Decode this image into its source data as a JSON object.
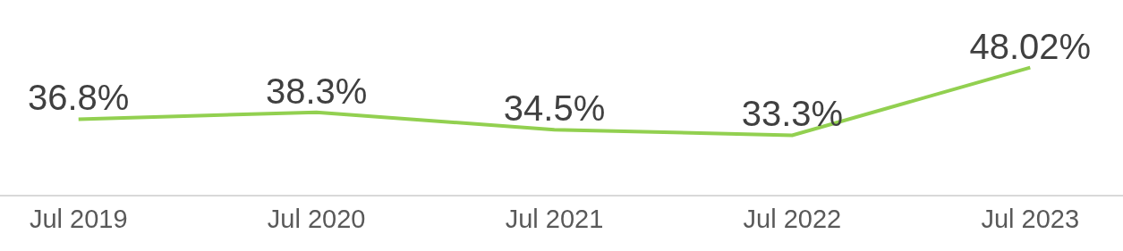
{
  "chart_data": {
    "type": "line",
    "categories": [
      "Jul 2019",
      "Jul 2020",
      "Jul 2021",
      "Jul 2022",
      "Jul 2023"
    ],
    "series": [
      {
        "color": "#92d050",
        "values": [
          36.8,
          38.3,
          34.5,
          33.3,
          48.02
        ],
        "value_labels": [
          "36.8%",
          "38.3%",
          "34.5%",
          "33.3%",
          "48.02%"
        ]
      }
    ],
    "legend": false,
    "marker": "none",
    "line_style": "solid"
  }
}
